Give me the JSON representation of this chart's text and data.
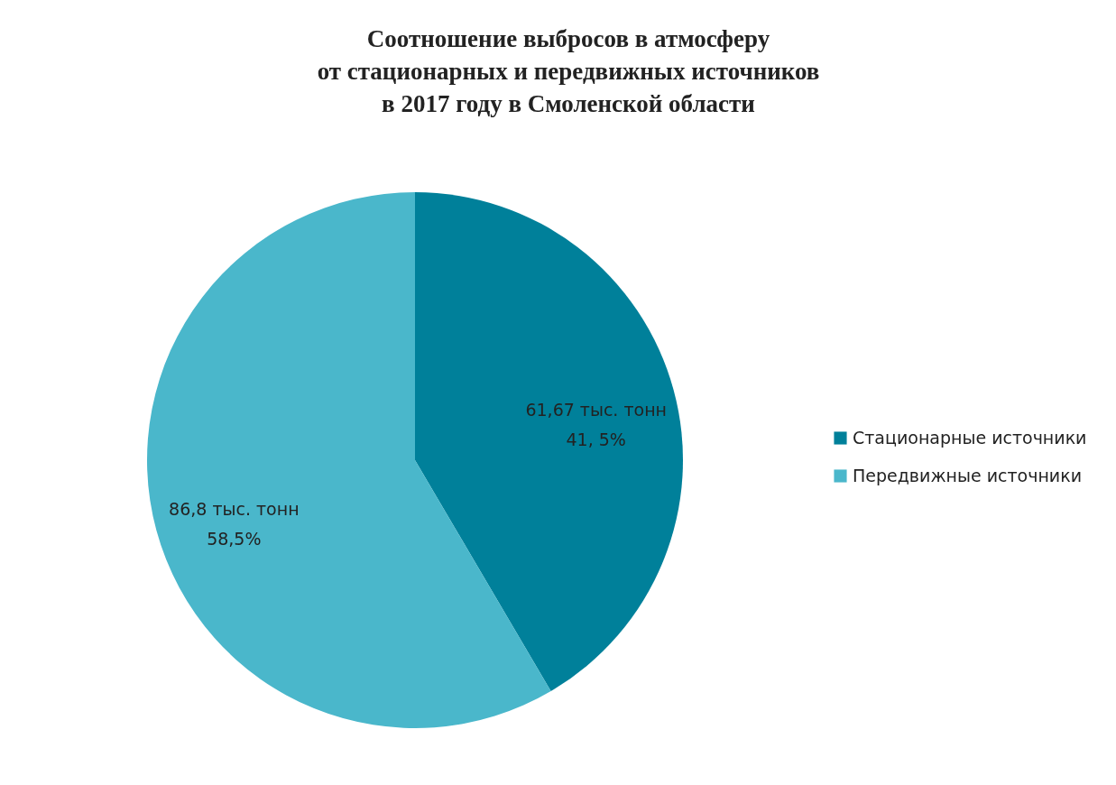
{
  "chart_data": {
    "type": "pie",
    "title": "Соотношение выбросов в атмосферу\nот стационарных и передвижных источников\nв 2017 году в Смоленской области",
    "categories": [
      "Стационарные источники",
      "Передвижные источники"
    ],
    "values": [
      61.67,
      86.8
    ],
    "colors": [
      "#00809a",
      "#4ab7cb"
    ],
    "value_labels": [
      "61,67 тыс. тонн\n41, 5%",
      "86,8 тыс. тонн\n58,5%"
    ],
    "legend": "right"
  }
}
